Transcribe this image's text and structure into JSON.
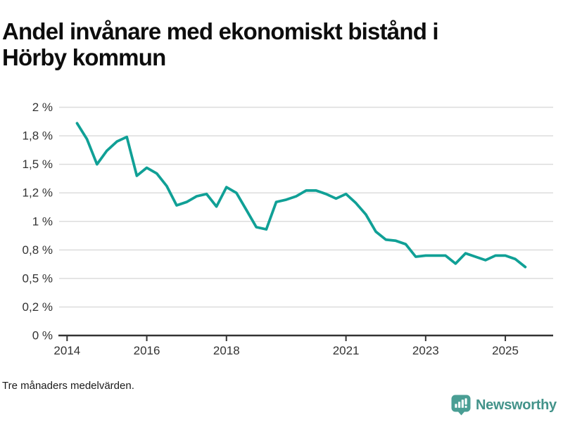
{
  "title": {
    "line1": "Andel invånare med ekonomiskt bistånd i",
    "line2": "Hörby kommun",
    "full": "Andel invånare med ekonomiskt bistånd i Hörby kommun"
  },
  "footnote": "Tre månaders medelvärden.",
  "brand": {
    "name": "Newsworthy",
    "icon": "bar-chart-bubble-icon",
    "icon_color": "#4A9E94",
    "text_color": "#43938A"
  },
  "colors": {
    "line": "#10A096",
    "grid": "#DCDCDC",
    "axis": "#333333",
    "tick_label": "#333333",
    "title": "#0D0D0D",
    "background": "#FFFFFF"
  },
  "chart_data": {
    "type": "line",
    "title": "Andel invånare med ekonomiskt bistånd i Hörby kommun",
    "subtitle": "Tre månaders medelvärden.",
    "xlabel": "",
    "ylabel": "",
    "unit": "%",
    "grid": true,
    "legend": "none",
    "xlim": [
      2013.8,
      2026.2
    ],
    "ylim": [
      0,
      2
    ],
    "y_ticks": [
      {
        "value": 2,
        "label": "2 %"
      },
      {
        "value": 1.75,
        "label": "1,8 %"
      },
      {
        "value": 1.5,
        "label": "1,5 %"
      },
      {
        "value": 1.25,
        "label": "1,2 %"
      },
      {
        "value": 1,
        "label": "1 %"
      },
      {
        "value": 0.75,
        "label": "0,8 %"
      },
      {
        "value": 0.5,
        "label": "0,5 %"
      },
      {
        "value": 0.25,
        "label": "0,2 %"
      },
      {
        "value": 0,
        "label": "0 %"
      }
    ],
    "x_ticks": [
      {
        "value": 2014,
        "label": "2014"
      },
      {
        "value": 2016,
        "label": "2016"
      },
      {
        "value": 2018,
        "label": "2018"
      },
      {
        "value": 2021,
        "label": "2021"
      },
      {
        "value": 2023,
        "label": "2023"
      },
      {
        "value": 2025,
        "label": "2025"
      }
    ],
    "series": [
      {
        "name": "Andel invånare med ekonomiskt bistånd, Hörby kommun (tre månaders medelvärden)",
        "color": "#10A096",
        "x": [
          2014.25,
          2014.5,
          2014.75,
          2015.0,
          2015.25,
          2015.5,
          2015.75,
          2016.0,
          2016.25,
          2016.5,
          2016.75,
          2017.0,
          2017.25,
          2017.5,
          2017.75,
          2018.0,
          2018.25,
          2018.5,
          2018.75,
          2019.0,
          2019.25,
          2019.5,
          2019.75,
          2020.0,
          2020.25,
          2020.5,
          2020.75,
          2021.0,
          2021.25,
          2021.5,
          2021.75,
          2022.0,
          2022.25,
          2022.5,
          2022.75,
          2023.0,
          2023.25,
          2023.5,
          2023.75,
          2024.0,
          2024.25,
          2024.5,
          2024.75,
          2025.0,
          2025.25,
          2025.5
        ],
        "y": [
          1.86,
          1.72,
          1.5,
          1.62,
          1.7,
          1.74,
          1.4,
          1.47,
          1.42,
          1.31,
          1.14,
          1.17,
          1.22,
          1.24,
          1.13,
          1.3,
          1.25,
          1.1,
          0.95,
          0.93,
          1.17,
          1.19,
          1.22,
          1.27,
          1.27,
          1.24,
          1.2,
          1.24,
          1.16,
          1.06,
          0.91,
          0.84,
          0.83,
          0.8,
          0.69,
          0.7,
          0.7,
          0.7,
          0.63,
          0.72,
          0.69,
          0.66,
          0.7,
          0.7,
          0.67,
          0.6
        ]
      }
    ]
  }
}
